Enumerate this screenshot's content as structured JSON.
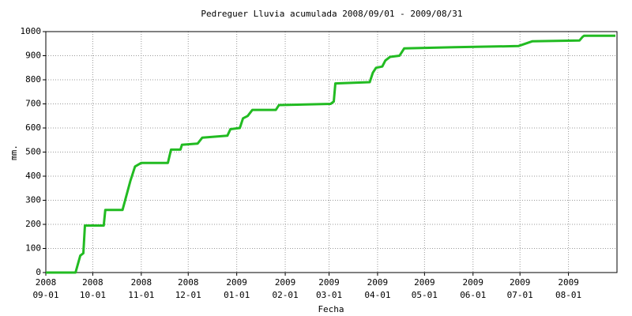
{
  "chart_data": {
    "type": "line",
    "title": "Pedreguer Lluvia acumulada 2008/09/01 - 2009/08/31",
    "x_label": "Fecha",
    "y_label": "mm.",
    "x": [
      "2008-09-01",
      "2008-09-20",
      "2008-09-23",
      "2008-09-25",
      "2008-09-26",
      "2008-10-08",
      "2008-10-09",
      "2008-10-20",
      "2008-10-25",
      "2008-10-28",
      "2008-11-01",
      "2008-11-18",
      "2008-11-20",
      "2008-11-26",
      "2008-11-27",
      "2008-12-07",
      "2008-12-10",
      "2008-12-26",
      "2008-12-28",
      "2009-01-03",
      "2009-01-05",
      "2009-01-08",
      "2009-01-11",
      "2009-01-26",
      "2009-01-28",
      "2009-03-02",
      "2009-03-04",
      "2009-03-05",
      "2009-03-27",
      "2009-03-29",
      "2009-03-31",
      "2009-04-04",
      "2009-04-06",
      "2009-04-09",
      "2009-04-15",
      "2009-04-18",
      "2009-05-20",
      "2009-06-30",
      "2009-07-09",
      "2009-08-08",
      "2009-08-10",
      "2009-08-11",
      "2009-08-31"
    ],
    "series": [
      {
        "name": "Lluvia acumulada",
        "color": "#22bb22",
        "values": [
          0,
          0,
          70,
          80,
          195,
          195,
          260,
          260,
          380,
          440,
          455,
          455,
          510,
          510,
          530,
          535,
          560,
          568,
          595,
          600,
          640,
          650,
          675,
          675,
          695,
          700,
          710,
          785,
          790,
          830,
          850,
          855,
          880,
          895,
          900,
          930,
          935,
          940,
          960,
          963,
          978,
          983,
          983
        ]
      }
    ],
    "xlim": [
      "2008-09-01",
      "2009-08-31"
    ],
    "xticks": [
      {
        "value": "2008-09-01",
        "label": [
          "2008",
          "09-01"
        ]
      },
      {
        "value": "2008-10-01",
        "label": [
          "2008",
          "10-01"
        ]
      },
      {
        "value": "2008-11-01",
        "label": [
          "2008",
          "11-01"
        ]
      },
      {
        "value": "2008-12-01",
        "label": [
          "2008",
          "12-01"
        ]
      },
      {
        "value": "2009-01-01",
        "label": [
          "2009",
          "01-01"
        ]
      },
      {
        "value": "2009-02-01",
        "label": [
          "2009",
          "02-01"
        ]
      },
      {
        "value": "2009-03-01",
        "label": [
          "2009",
          "03-01"
        ]
      },
      {
        "value": "2009-04-01",
        "label": [
          "2009",
          "04-01"
        ]
      },
      {
        "value": "2009-05-01",
        "label": [
          "2009",
          "05-01"
        ]
      },
      {
        "value": "2009-06-01",
        "label": [
          "2009",
          "06-01"
        ]
      },
      {
        "value": "2009-07-01",
        "label": [
          "2009",
          "07-01"
        ]
      },
      {
        "value": "2009-08-01",
        "label": [
          "2009",
          "08-01"
        ]
      }
    ],
    "ylim": [
      0,
      1000
    ],
    "yticks": [
      0,
      100,
      200,
      300,
      400,
      500,
      600,
      700,
      800,
      900,
      1000
    ],
    "grid": true
  }
}
